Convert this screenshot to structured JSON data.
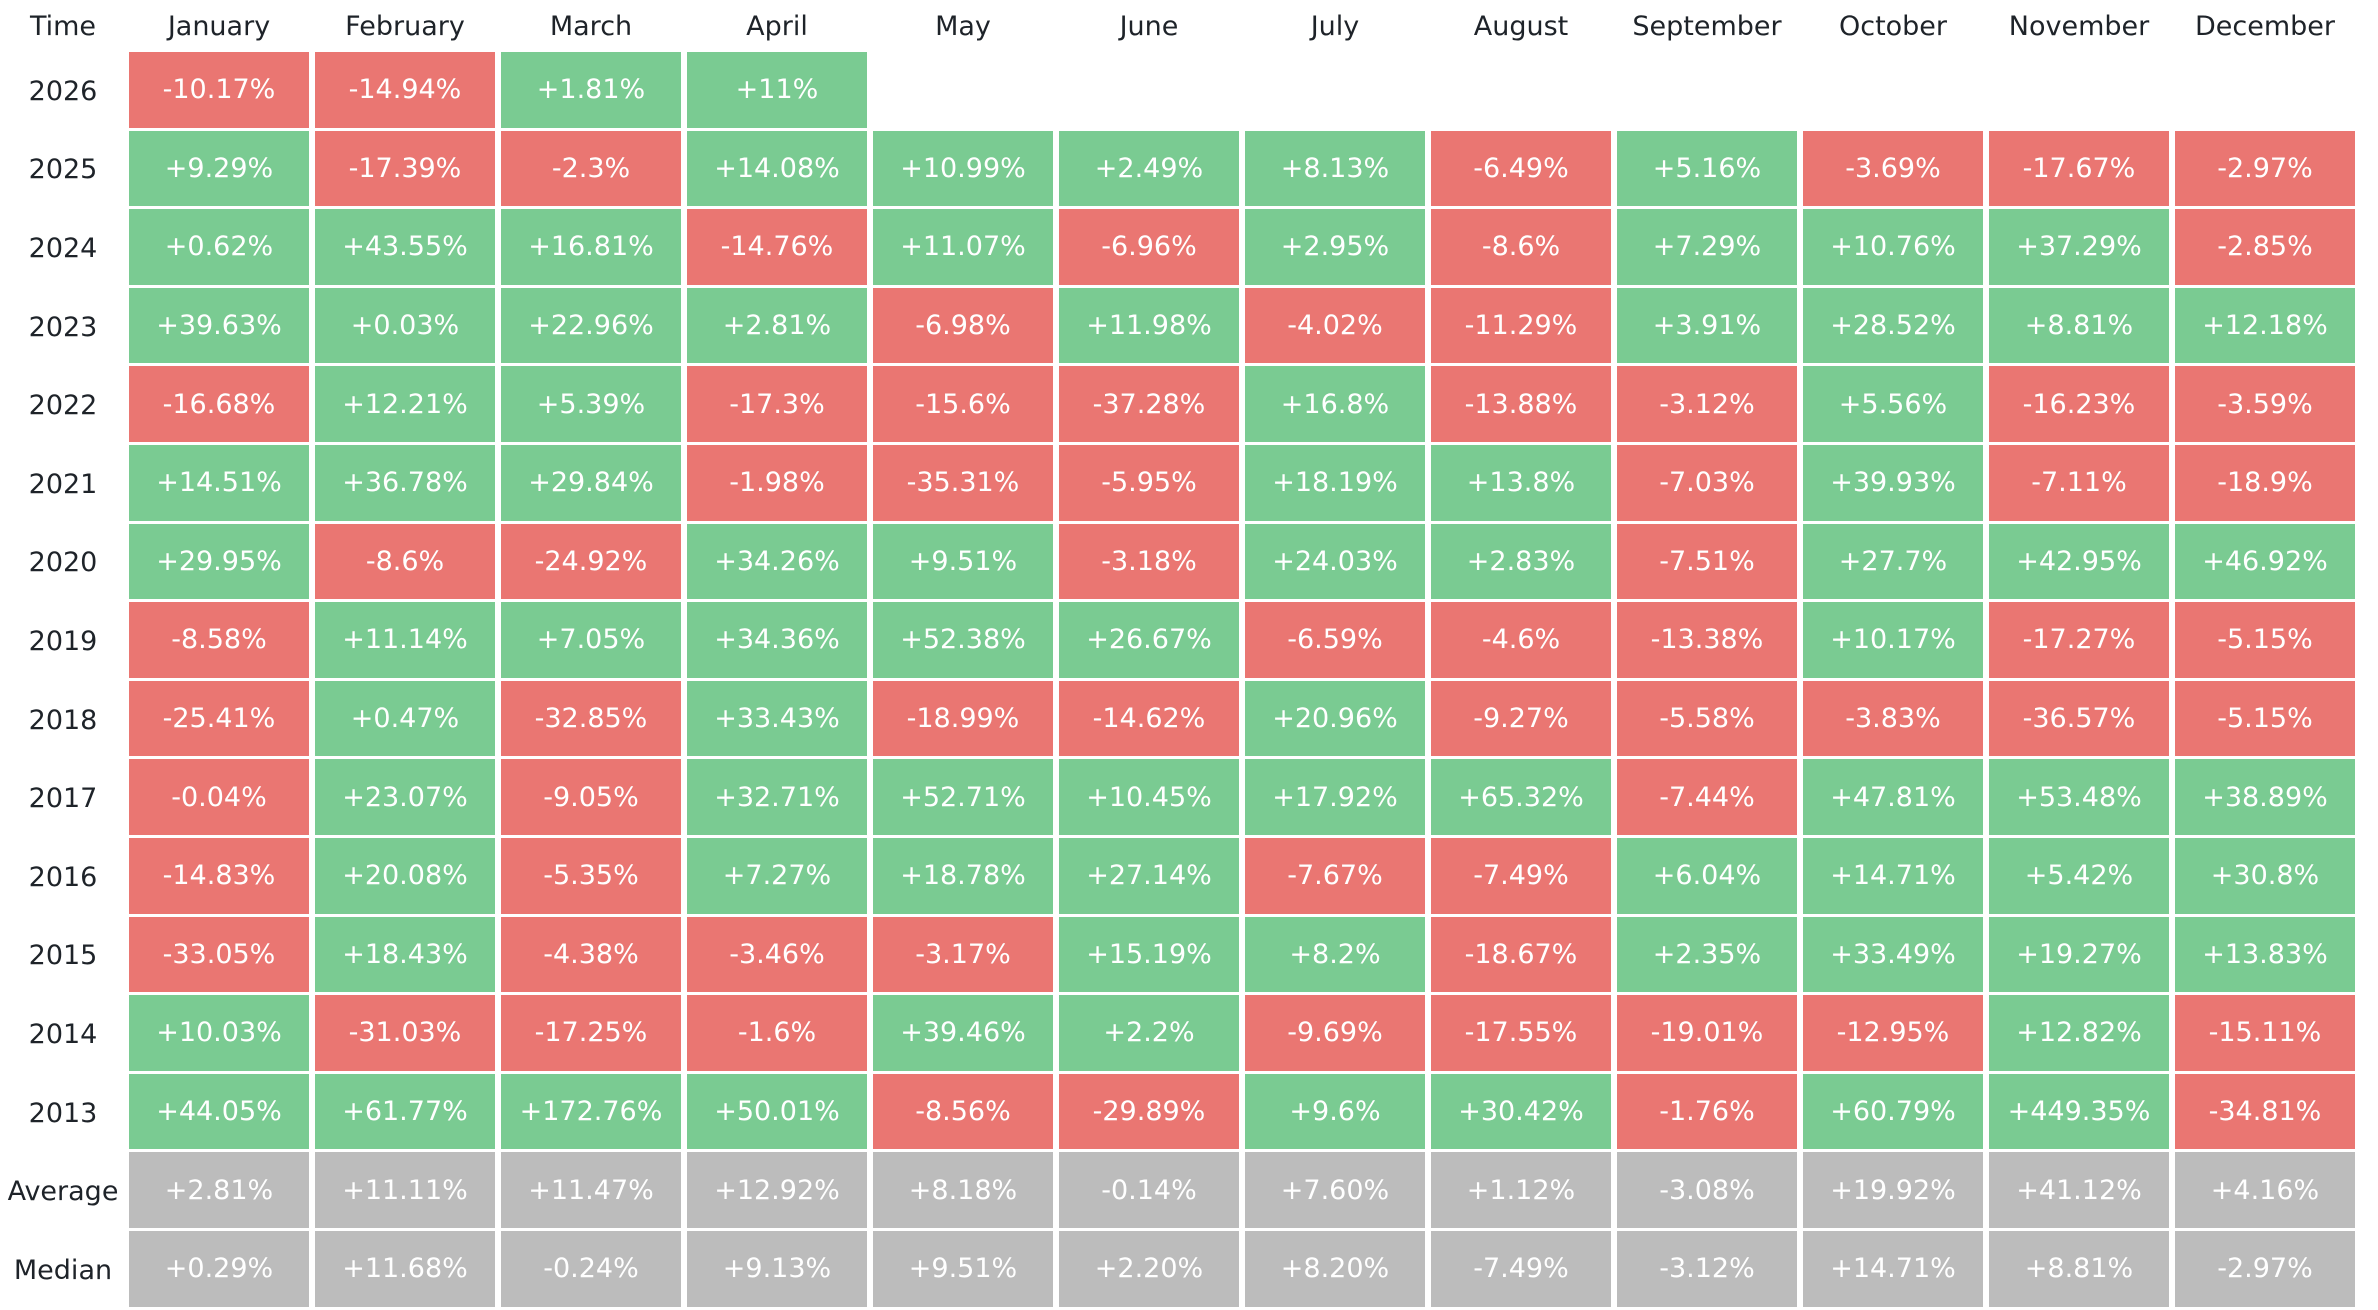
{
  "chart_data": {
    "type": "table",
    "corner_label": "Time",
    "columns": [
      "January",
      "February",
      "March",
      "April",
      "May",
      "June",
      "July",
      "August",
      "September",
      "October",
      "November",
      "December"
    ],
    "rows": [
      {
        "label": "2026",
        "values": [
          "-10.17%",
          "-14.94%",
          "+1.81%",
          "+11%",
          null,
          null,
          null,
          null,
          null,
          null,
          null,
          null
        ]
      },
      {
        "label": "2025",
        "values": [
          "+9.29%",
          "-17.39%",
          "-2.3%",
          "+14.08%",
          "+10.99%",
          "+2.49%",
          "+8.13%",
          "-6.49%",
          "+5.16%",
          "-3.69%",
          "-17.67%",
          "-2.97%"
        ]
      },
      {
        "label": "2024",
        "values": [
          "+0.62%",
          "+43.55%",
          "+16.81%",
          "-14.76%",
          "+11.07%",
          "-6.96%",
          "+2.95%",
          "-8.6%",
          "+7.29%",
          "+10.76%",
          "+37.29%",
          "-2.85%"
        ]
      },
      {
        "label": "2023",
        "values": [
          "+39.63%",
          "+0.03%",
          "+22.96%",
          "+2.81%",
          "-6.98%",
          "+11.98%",
          "-4.02%",
          "-11.29%",
          "+3.91%",
          "+28.52%",
          "+8.81%",
          "+12.18%"
        ]
      },
      {
        "label": "2022",
        "values": [
          "-16.68%",
          "+12.21%",
          "+5.39%",
          "-17.3%",
          "-15.6%",
          "-37.28%",
          "+16.8%",
          "-13.88%",
          "-3.12%",
          "+5.56%",
          "-16.23%",
          "-3.59%"
        ]
      },
      {
        "label": "2021",
        "values": [
          "+14.51%",
          "+36.78%",
          "+29.84%",
          "-1.98%",
          "-35.31%",
          "-5.95%",
          "+18.19%",
          "+13.8%",
          "-7.03%",
          "+39.93%",
          "-7.11%",
          "-18.9%"
        ]
      },
      {
        "label": "2020",
        "values": [
          "+29.95%",
          "-8.6%",
          "-24.92%",
          "+34.26%",
          "+9.51%",
          "-3.18%",
          "+24.03%",
          "+2.83%",
          "-7.51%",
          "+27.7%",
          "+42.95%",
          "+46.92%"
        ]
      },
      {
        "label": "2019",
        "values": [
          "-8.58%",
          "+11.14%",
          "+7.05%",
          "+34.36%",
          "+52.38%",
          "+26.67%",
          "-6.59%",
          "-4.6%",
          "-13.38%",
          "+10.17%",
          "-17.27%",
          "-5.15%"
        ]
      },
      {
        "label": "2018",
        "values": [
          "-25.41%",
          "+0.47%",
          "-32.85%",
          "+33.43%",
          "-18.99%",
          "-14.62%",
          "+20.96%",
          "-9.27%",
          "-5.58%",
          "-3.83%",
          "-36.57%",
          "-5.15%"
        ]
      },
      {
        "label": "2017",
        "values": [
          "-0.04%",
          "+23.07%",
          "-9.05%",
          "+32.71%",
          "+52.71%",
          "+10.45%",
          "+17.92%",
          "+65.32%",
          "-7.44%",
          "+47.81%",
          "+53.48%",
          "+38.89%"
        ]
      },
      {
        "label": "2016",
        "values": [
          "-14.83%",
          "+20.08%",
          "-5.35%",
          "+7.27%",
          "+18.78%",
          "+27.14%",
          "-7.67%",
          "-7.49%",
          "+6.04%",
          "+14.71%",
          "+5.42%",
          "+30.8%"
        ]
      },
      {
        "label": "2015",
        "values": [
          "-33.05%",
          "+18.43%",
          "-4.38%",
          "-3.46%",
          "-3.17%",
          "+15.19%",
          "+8.2%",
          "-18.67%",
          "+2.35%",
          "+33.49%",
          "+19.27%",
          "+13.83%"
        ]
      },
      {
        "label": "2014",
        "values": [
          "+10.03%",
          "-31.03%",
          "-17.25%",
          "-1.6%",
          "+39.46%",
          "+2.2%",
          "-9.69%",
          "-17.55%",
          "-19.01%",
          "-12.95%",
          "+12.82%",
          "-15.11%"
        ]
      },
      {
        "label": "2013",
        "values": [
          "+44.05%",
          "+61.77%",
          "+172.76%",
          "+50.01%",
          "-8.56%",
          "-29.89%",
          "+9.6%",
          "+30.42%",
          "-1.76%",
          "+60.79%",
          "+449.35%",
          "-34.81%"
        ]
      },
      {
        "label": "Average",
        "summary": true,
        "values": [
          "+2.81%",
          "+11.11%",
          "+11.47%",
          "+12.92%",
          "+8.18%",
          "-0.14%",
          "+7.60%",
          "+1.12%",
          "-3.08%",
          "+19.92%",
          "+41.12%",
          "+4.16%"
        ]
      },
      {
        "label": "Median",
        "summary": true,
        "values": [
          "+0.29%",
          "+11.68%",
          "-0.24%",
          "+9.13%",
          "+9.51%",
          "+2.20%",
          "+8.20%",
          "-7.49%",
          "-3.12%",
          "+14.71%",
          "+8.81%",
          "-2.97%"
        ]
      }
    ],
    "colors": {
      "positive": "#7acb92",
      "negative": "#ea7672",
      "summary": "#bcbcbc",
      "cell_text": "#ffffff",
      "label_text": "#1e2329"
    }
  }
}
